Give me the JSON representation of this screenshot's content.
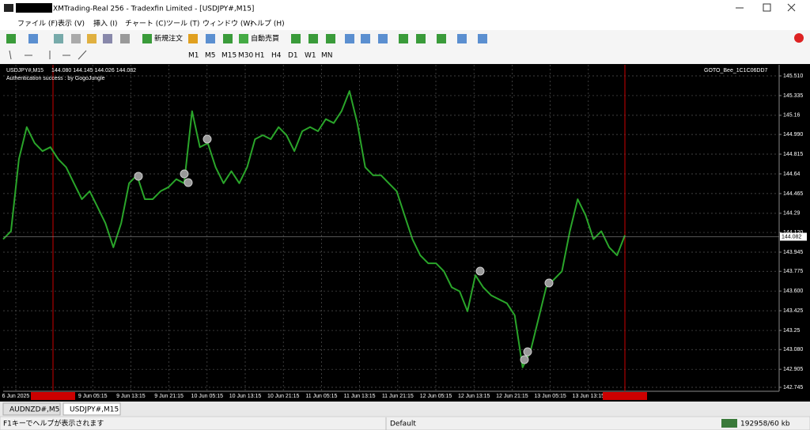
{
  "window": {
    "title": "XMTrading-Real 256 - Tradexfin Limited - [USDJPY#,M15]"
  },
  "menu": [
    "ファイル (F)",
    "表示 (V)",
    "挿入 (I)",
    "チャート (C)",
    "ツール (T)",
    "ウィンドウ (W)",
    "ヘルプ (H)"
  ],
  "toolbar": {
    "new_order": "新規注文",
    "auto_trading": "自動売買",
    "timeframes": [
      "M1",
      "M5",
      "M15",
      "M30",
      "H1",
      "H4",
      "D1",
      "W1",
      "MN"
    ]
  },
  "chart": {
    "symbol": "USDJPY#,M15",
    "ohlc": "144.080 144.145 144.026 144.082",
    "status": "Authentication success : by GogoJungle",
    "expert": "GOTO_Bee_1C1C06DD7",
    "ylim": [
      142.745,
      145.51
    ],
    "yticks": [
      {
        "value": 145.51,
        "label": "145.510"
      },
      145.335,
      145.16,
      {
        "value": 144.99,
        "label": "144.990"
      },
      144.815,
      144.64,
      144.465,
      144.29,
      {
        "value": 144.12,
        "label": "144.120"
      },
      143.945,
      143.775,
      {
        "value": 143.6,
        "label": "143.600"
      },
      143.425,
      143.25,
      {
        "value": 143.08,
        "label": "143.080"
      },
      142.905,
      142.745
    ],
    "current": 144.082,
    "xticks": [
      "6 Jun 2025",
      "9 Jun 05:15",
      "9 Jun 13:15",
      "9 Jun 21:15",
      "10 Jun 05:15",
      "10 Jun 13:15",
      "10 Jun 21:15",
      "11 Jun 05:15",
      "11 Jun 13:15",
      "11 Jun 21:15",
      "12 Jun 05:15",
      "12 Jun 13:15",
      "12 Jun 21:15",
      "13 Jun 05:15",
      "13 Jun 13:15"
    ],
    "color": "#2aa52a",
    "prices": [
      144.06,
      144.131,
      144.771,
      145.055,
      144.913,
      144.842,
      144.877,
      144.771,
      144.699,
      144.557,
      144.415,
      144.486,
      144.344,
      144.202,
      143.988,
      144.202,
      144.557,
      144.628,
      144.415,
      144.415,
      144.486,
      144.522,
      144.593,
      144.557,
      145.197,
      144.877,
      144.913,
      144.699,
      144.557,
      144.664,
      144.557,
      144.699,
      144.948,
      144.984,
      144.948,
      145.055,
      144.984,
      144.842,
      145.019,
      145.055,
      145.019,
      145.126,
      145.091,
      145.197,
      145.375,
      145.091,
      144.699,
      144.628,
      144.628,
      144.557,
      144.486,
      144.273,
      144.06,
      143.917,
      143.846,
      143.846,
      143.775,
      143.633,
      143.597,
      143.42,
      143.74,
      143.633,
      143.562,
      143.526,
      143.491,
      143.384,
      142.922,
      143.064,
      143.349,
      143.633,
      143.704,
      143.775,
      144.131,
      144.415,
      144.273,
      144.06,
      144.131,
      143.988,
      143.917,
      144.095
    ]
  },
  "tabs": [
    "AUDNZD#,M5",
    "USDJPY#,M15"
  ],
  "status": {
    "help": "F1キーでヘルプが表示されます",
    "profile": "Default",
    "traffic": "192958/60 kb"
  }
}
